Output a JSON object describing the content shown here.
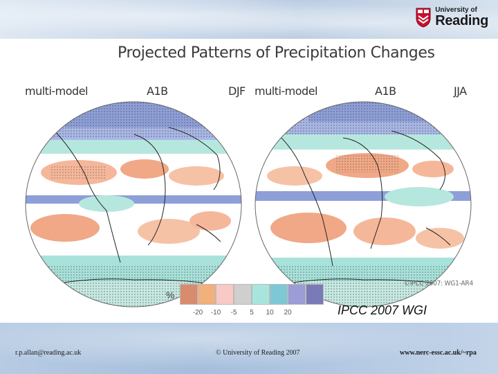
{
  "header": {
    "logo_top": "University of",
    "logo_main": "Reading"
  },
  "figure": {
    "title": "Projected Patterns of Precipitation Changes",
    "panels": [
      {
        "model": "multi-model",
        "scenario": "A1B",
        "season": "DJF"
      },
      {
        "model": "multi-model",
        "scenario": "A1B",
        "season": "JJA"
      }
    ],
    "copyright": "©IPCC 2007: WG1-AR4",
    "legend": {
      "unit": "%",
      "colors": [
        "#d98b6e",
        "#f2b07a",
        "#f9c9c6",
        "#cfcfcf",
        "#a8e6dd",
        "#7ec8d6",
        "#9c9cd6",
        "#7a7ab8"
      ],
      "ticks": [
        "-20",
        "-10",
        "-5",
        "5",
        "10",
        "20"
      ]
    },
    "source_note": "IPCC 2007 WGI"
  },
  "footer": {
    "email": "r.p.allan@reading.ac.uk",
    "copyright": "© University of Reading 2007",
    "url": "www.nerc-essc.ac.uk/~rpa"
  }
}
